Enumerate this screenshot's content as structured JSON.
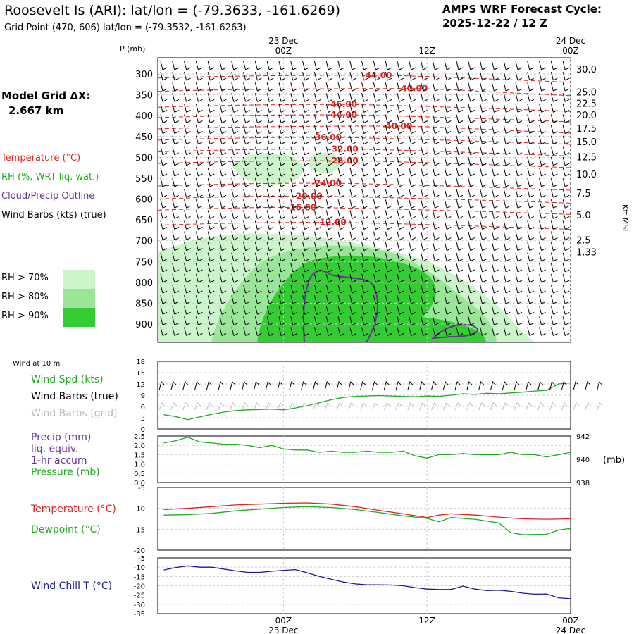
{
  "header": {
    "title": "Roosevelt Is (ARI):  lat/lon = (-79.3633, -161.6269)",
    "subtitle": "Grid Point (470, 606) lat/lon = (-79.3532, -161.6263)",
    "cycle_label": "AMPS WRF Forecast Cycle:",
    "cycle_value": "2025-12-22 / 12  Z"
  },
  "model_grid": {
    "label": "Model Grid ΔX:",
    "value": "2.667 km"
  },
  "legend": {
    "temperature": {
      "text": "Temperature (°C)",
      "color": "#dd2222"
    },
    "rh": {
      "text": "RH (%, WRT liq. wat.)",
      "color": "#22aa22"
    },
    "cloud": {
      "text": "Cloud/Precip Outline",
      "color": "#663399"
    },
    "wind": {
      "text": "Wind Barbs (kts) (true)",
      "color": "#000000"
    },
    "rh_levels": [
      {
        "text": "RH > 70%",
        "color": "#ccf5cc"
      },
      {
        "text": "RH > 80%",
        "color": "#99e699"
      },
      {
        "text": "RH > 90%",
        "color": "#33cc33"
      }
    ]
  },
  "chart_data": [
    {
      "type": "heatmap",
      "id": "cross-section",
      "ylabel": "P (mb)",
      "ylabel_right": "Kft MSL",
      "pressure_ticks": [
        300,
        350,
        400,
        450,
        500,
        550,
        600,
        650,
        700,
        750,
        800,
        850,
        900
      ],
      "height_ticks": [
        {
          "label": "30.0",
          "p": 288
        },
        {
          "label": "25.0",
          "p": 343
        },
        {
          "label": "22.5",
          "p": 370
        },
        {
          "label": "20.0",
          "p": 398
        },
        {
          "label": "17.5",
          "p": 430
        },
        {
          "label": "15.0",
          "p": 462
        },
        {
          "label": "12.5",
          "p": 499
        },
        {
          "label": "10.0",
          "p": 540
        },
        {
          "label": "7.5",
          "p": 586
        },
        {
          "label": "5.0",
          "p": 638
        },
        {
          "label": "2.5",
          "p": 698
        },
        {
          "label": "1.33",
          "p": 727
        }
      ],
      "x_ticks_top": [
        {
          "time": 0,
          "label": "00Z",
          "date": "23 Dec"
        },
        {
          "time": 12,
          "label": "12Z",
          "date": ""
        },
        {
          "time": 24,
          "label": "00Z",
          "date": "24 Dec"
        }
      ],
      "temperature_contours": [
        {
          "label": "-44.00",
          "p": 303,
          "time": 7.8
        },
        {
          "label": "-40.00",
          "p": 335,
          "time": 10.8
        },
        {
          "label": "-46.00",
          "p": 373,
          "time": 4.9
        },
        {
          "label": "-44.00",
          "p": 398,
          "time": 4.9
        },
        {
          "label": "-40.00",
          "p": 425,
          "time": 9.5
        },
        {
          "label": "-36.00",
          "p": 452,
          "time": 3.6
        },
        {
          "label": "-32.00",
          "p": 480,
          "time": 5.0
        },
        {
          "label": "-28.00",
          "p": 508,
          "time": 5.0
        },
        {
          "label": "-24.00",
          "p": 562,
          "time": 3.6
        },
        {
          "label": "-20.00",
          "p": 593,
          "time": 2.0
        },
        {
          "label": "-16.00",
          "p": 620,
          "time": 1.5
        },
        {
          "label": "-12.00",
          "p": 656,
          "time": 4.0
        }
      ]
    },
    {
      "type": "line",
      "id": "wind-10m",
      "caption": "Wind at 10 m",
      "ylim": [
        0,
        18
      ],
      "yticks": [
        0,
        3,
        6,
        9,
        12,
        15,
        18
      ],
      "series": [
        {
          "name": "Wind Spd (kts)",
          "color": "#22aa22",
          "x": [
            -10,
            -9,
            -8,
            -7,
            -6,
            -5,
            -4,
            -3,
            -2,
            -1,
            0,
            1,
            2,
            3,
            4,
            5,
            6,
            7,
            8,
            9,
            10,
            11,
            12,
            13,
            14,
            15,
            16,
            17,
            18,
            19,
            20,
            21,
            22,
            23,
            24
          ],
          "y": [
            3.8,
            3.3,
            2.5,
            3.2,
            3.9,
            4.5,
            4.9,
            5.1,
            5.2,
            5.3,
            5.1,
            5.6,
            6.2,
            7.0,
            7.8,
            8.4,
            8.7,
            8.8,
            8.9,
            8.8,
            8.7,
            8.6,
            8.8,
            8.7,
            9.0,
            9.4,
            9.2,
            9.5,
            9.4,
            9.6,
            9.8,
            10.1,
            10.3,
            12.0,
            12.3
          ]
        }
      ],
      "legend": [
        {
          "text": "Wind Spd (kts)",
          "color": "#22aa22"
        },
        {
          "text": "Wind Barbs (true)",
          "color": "#000000"
        },
        {
          "text": "Wind Barbs (grid)",
          "color": "#bbbbbb"
        }
      ]
    },
    {
      "type": "line",
      "id": "precip-pressure",
      "ylim": [
        0,
        2.5
      ],
      "yticks": [
        "0.0",
        "0.5",
        "1.0",
        "1.5",
        "2.0",
        "2.5"
      ],
      "ylim_right": [
        938,
        942
      ],
      "yticks_right": [
        "938",
        "940",
        "942"
      ],
      "ylabel_right": "(mb)",
      "series": [
        {
          "name": "Pressure (mb)",
          "color": "#22aa22",
          "axis": "right",
          "x": [
            -10,
            -9,
            -8,
            -7,
            -6,
            -5,
            -4,
            -3,
            -2,
            -1,
            0,
            1,
            2,
            3,
            4,
            5,
            6,
            7,
            8,
            9,
            10,
            11,
            12,
            13,
            14,
            15,
            16,
            17,
            18,
            19,
            20,
            21,
            22,
            23,
            24
          ],
          "y": [
            941.4,
            941.6,
            941.9,
            941.5,
            941.4,
            941.3,
            941.3,
            941.2,
            941.0,
            941.2,
            940.9,
            940.8,
            940.8,
            940.6,
            940.7,
            940.6,
            940.6,
            940.7,
            940.6,
            940.6,
            940.7,
            940.3,
            940.1,
            940.4,
            940.4,
            940.5,
            940.4,
            940.4,
            940.4,
            940.6,
            940.4,
            940.4,
            940.2,
            940.4,
            940.6
          ]
        }
      ],
      "legend": [
        {
          "text": "Precip (mm)",
          "color": "#663399"
        },
        {
          "text": "liq. equiv.",
          "color": "#663399"
        },
        {
          "text": "1-hr accum",
          "color": "#663399"
        },
        {
          "text": "Pressure (mb)",
          "color": "#22aa22"
        }
      ]
    },
    {
      "type": "line",
      "id": "temp-dewpoint",
      "ylim": [
        -20,
        -5
      ],
      "yticks": [
        "-20",
        "-15",
        "-10",
        "-5"
      ],
      "series": [
        {
          "name": "Temperature (°C)",
          "color": "#dd2222",
          "x": [
            -10,
            -8,
            -6,
            -4,
            -2,
            0,
            2,
            4,
            6,
            8,
            10,
            12,
            13,
            14,
            16,
            18,
            20,
            22,
            24
          ],
          "y": [
            -10.3,
            -10.0,
            -9.6,
            -9.2,
            -9.0,
            -8.8,
            -8.7,
            -9.0,
            -9.6,
            -10.5,
            -11.3,
            -12.2,
            -11.6,
            -11.3,
            -11.6,
            -12.1,
            -12.5,
            -12.6,
            -12.5
          ]
        },
        {
          "name": "Dewpoint (°C)",
          "color": "#22aa22",
          "x": [
            -10,
            -8,
            -6,
            -4,
            -2,
            0,
            2,
            4,
            6,
            8,
            10,
            12,
            13,
            14,
            16,
            18,
            19,
            20,
            22,
            23,
            24
          ],
          "y": [
            -11.6,
            -11.5,
            -11.2,
            -10.6,
            -10.2,
            -9.8,
            -9.6,
            -9.8,
            -10.3,
            -11.0,
            -11.8,
            -12.4,
            -13.2,
            -12.2,
            -12.6,
            -13.5,
            -15.8,
            -16.3,
            -16.2,
            -15.2,
            -14.8
          ]
        }
      ],
      "legend": [
        {
          "text": "Temperature (°C)",
          "color": "#dd2222"
        },
        {
          "text": "Dewpoint (°C)",
          "color": "#22aa22"
        }
      ]
    },
    {
      "type": "line",
      "id": "wind-chill",
      "ylim": [
        -35,
        -5
      ],
      "yticks": [
        "-35",
        "-30",
        "-25",
        "-20",
        "-15",
        "-10",
        "-5"
      ],
      "x_ticks_bottom": [
        {
          "time": 0,
          "label": "00Z",
          "date": "23 Dec"
        },
        {
          "time": 12,
          "label": "12Z",
          "date": ""
        },
        {
          "time": 24,
          "label": "00Z",
          "date": "24 Dec"
        }
      ],
      "series": [
        {
          "name": "Wind Chill T (°C)",
          "color": "#1a1a99",
          "x": [
            -10,
            -9,
            -8,
            -7,
            -6,
            -5,
            -4,
            -3,
            -2,
            -1,
            0,
            1,
            2,
            3,
            4,
            5,
            6,
            7,
            8,
            9,
            10,
            11,
            12,
            13,
            14,
            15,
            16,
            17,
            18,
            19,
            20,
            21,
            22,
            23,
            24
          ],
          "y": [
            -11.5,
            -10.2,
            -9.3,
            -10.0,
            -10.0,
            -11.0,
            -12.0,
            -12.8,
            -12.8,
            -12.2,
            -11.7,
            -11.3,
            -13.0,
            -15.0,
            -16.5,
            -18.0,
            -19.0,
            -19.5,
            -19.5,
            -19.6,
            -20.0,
            -21.0,
            -21.8,
            -22.0,
            -22.0,
            -20.2,
            -21.8,
            -22.6,
            -22.4,
            -23.0,
            -24.0,
            -24.5,
            -24.4,
            -26.5,
            -27.0
          ]
        }
      ],
      "legend": [
        {
          "text": "Wind Chill T (°C)",
          "color": "#1a1a99"
        }
      ]
    }
  ]
}
